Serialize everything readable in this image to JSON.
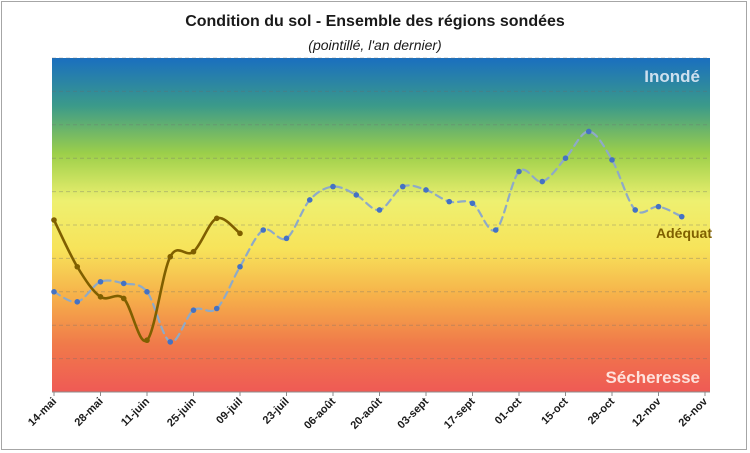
{
  "title": "Condition du sol - Ensemble des régions sondées",
  "subtitle": "(pointillé, l'an dernier)",
  "chart_data": {
    "type": "line",
    "ylim": [
      0,
      100
    ],
    "yticks": [
      "0",
      "10",
      "20",
      "30",
      "40",
      "50",
      "60",
      "70",
      "80",
      "90",
      "100"
    ],
    "grid": true,
    "x_tick_labels": [
      "14-mai",
      "28-mai",
      "11-juin",
      "25-juin",
      "09-juil",
      "23-juil",
      "06-août",
      "20-août",
      "03-sept",
      "17-sept",
      "01-oct",
      "15-oct",
      "29-oct",
      "12-nov",
      "26-nov"
    ],
    "background_gradient": [
      "#1a6fbf",
      "#3b9a8a",
      "#9ccf4a",
      "#eef070",
      "#f7e35a",
      "#f6b04a",
      "#f07a4a",
      "#ef5a55"
    ],
    "band_labels": {
      "top": "Inondé",
      "middle": "Adéquat",
      "bottom": "Sécheresse"
    },
    "series": [
      {
        "style": "solid",
        "color": "#7f5f00",
        "x": [
          "14-mai",
          "21-mai",
          "28-mai",
          "04-juin",
          "11-juin",
          "18-juin",
          "25-juin",
          "02-juil",
          "09-juil"
        ],
        "values": [
          51.5,
          37.5,
          28.5,
          28.0,
          15.5,
          40.5,
          42.0,
          52.0,
          47.5
        ]
      },
      {
        "style": "dashed",
        "color": "#8eaac8",
        "marker_color": "#4472c4",
        "x": [
          "14-mai",
          "21-mai",
          "28-mai",
          "04-juin",
          "11-juin",
          "18-juin",
          "25-juin",
          "02-juil",
          "09-juil",
          "16-juil",
          "23-juil",
          "30-juil",
          "06-août",
          "13-août",
          "20-août",
          "27-août",
          "03-sept",
          "10-sept",
          "17-sept",
          "24-sept",
          "01-oct",
          "08-oct",
          "15-oct",
          "22-oct",
          "29-oct",
          "05-nov",
          "12-nov",
          "19-nov"
        ],
        "values": [
          30.0,
          27.0,
          33.0,
          32.5,
          30.0,
          15.0,
          24.5,
          25.0,
          37.5,
          48.5,
          46.0,
          57.5,
          61.5,
          59.0,
          54.5,
          61.5,
          60.5,
          57.0,
          56.5,
          48.5,
          66.0,
          63.0,
          70.0,
          78.0,
          69.5,
          54.5,
          55.5,
          52.5
        ]
      }
    ]
  }
}
